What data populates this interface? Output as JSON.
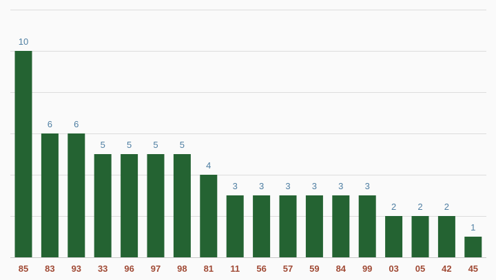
{
  "chart_data": {
    "type": "bar",
    "categories": [
      "85",
      "83",
      "93",
      "33",
      "96",
      "97",
      "98",
      "81",
      "11",
      "56",
      "57",
      "59",
      "84",
      "99",
      "03",
      "05",
      "42",
      "45"
    ],
    "values": [
      10,
      6,
      6,
      5,
      5,
      5,
      5,
      4,
      3,
      3,
      3,
      3,
      3,
      3,
      2,
      2,
      2,
      1
    ],
    "ylim": [
      0,
      12
    ],
    "yticks": [
      0,
      2,
      4,
      6,
      8,
      10,
      12
    ],
    "grid": true,
    "legend": "none",
    "data_labels": true,
    "axis_tick_labels_y": false
  },
  "colors": {
    "bar": "#246332",
    "value_label": "#4e7ea2",
    "category_label": "#a04a35",
    "grid": "#dcdcdc",
    "background": "#fafafa"
  }
}
